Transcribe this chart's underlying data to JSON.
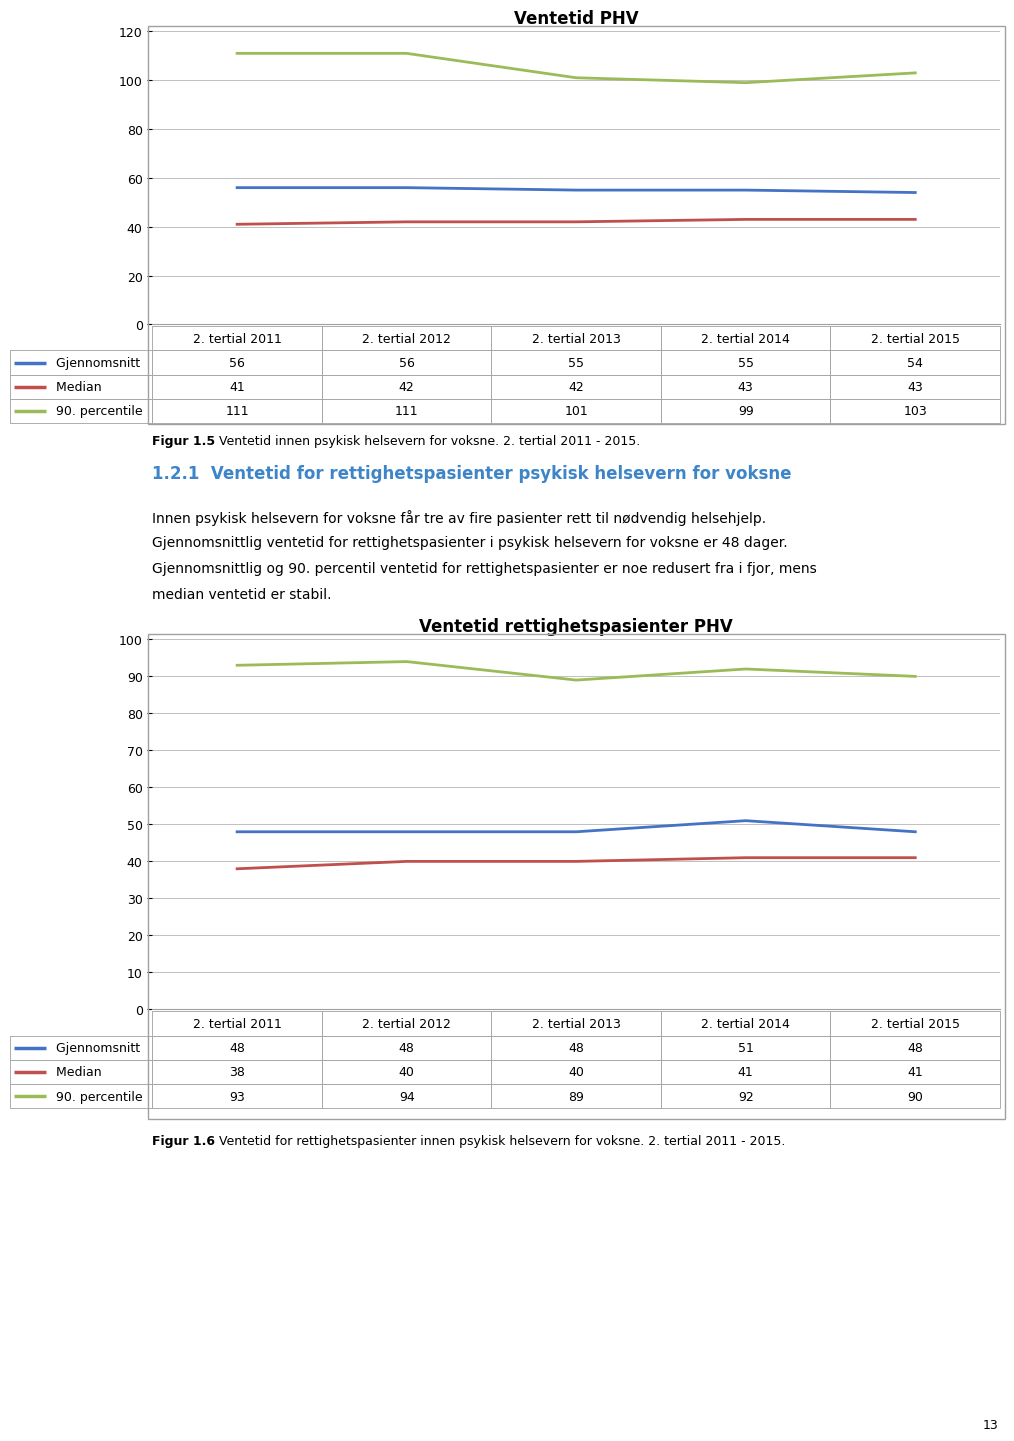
{
  "chart1": {
    "title": "Ventetid PHV",
    "x_labels": [
      "2. tertial 2011",
      "2. tertial 2012",
      "2. tertial 2013",
      "2. tertial 2014",
      "2. tertial 2015"
    ],
    "gjennomsnitt": [
      56,
      56,
      55,
      55,
      54
    ],
    "median": [
      41,
      42,
      42,
      43,
      43
    ],
    "percentile90": [
      111,
      111,
      101,
      99,
      103
    ],
    "ylim": [
      0,
      120
    ],
    "yticks": [
      0,
      20,
      40,
      60,
      80,
      100,
      120
    ],
    "color_gjennomsnitt": "#4472C4",
    "color_median": "#C0504D",
    "color_percentile": "#9BBB59",
    "figcaption_bold": "Figur 1.5",
    "figcaption_rest": " Ventetid innen psykisk helsevern for voksne. 2. tertial 2011 - 2015."
  },
  "chart2": {
    "title": "Ventetid rettighetspasienter PHV",
    "x_labels": [
      "2. tertial 2011",
      "2. tertial 2012",
      "2. tertial 2013",
      "2. tertial 2014",
      "2. tertial 2015"
    ],
    "gjennomsnitt": [
      48,
      48,
      48,
      51,
      48
    ],
    "median": [
      38,
      40,
      40,
      41,
      41
    ],
    "percentile90": [
      93,
      94,
      89,
      92,
      90
    ],
    "ylim": [
      0,
      100
    ],
    "yticks": [
      0,
      10,
      20,
      30,
      40,
      50,
      60,
      70,
      80,
      90,
      100
    ],
    "color_gjennomsnitt": "#4472C4",
    "color_median": "#C0504D",
    "color_percentile": "#9BBB59",
    "figcaption_bold": "Figur 1.6",
    "figcaption_rest": " Ventetid for rettighetspasienter innen psykisk helsevern for voksne. 2. tertial 2011 - 2015."
  },
  "section_title": "1.2.1  Ventetid for rettighetspasienter psykisk helsevern for voksne",
  "section_text_lines": [
    "Innen psykisk helsevern for voksne får tre av fire pasienter rett til nødvendig helsehjelp.",
    "Gjennomsnittlig ventetid for rettighetspasienter i psykisk helsevern for voksne er 48 dager.",
    "Gjennomsnittlig og 90. percentil ventetid for rettighetspasienter er noe redusert fra i fjor, mens",
    "median ventetid er stabil."
  ],
  "legend_labels": [
    "Gjennomsnitt",
    "Median",
    "90. percentile"
  ],
  "page_number": "13",
  "background_color": "#FFFFFF",
  "grid_color": "#C0C0C0",
  "border_color": "#A0A0A0"
}
